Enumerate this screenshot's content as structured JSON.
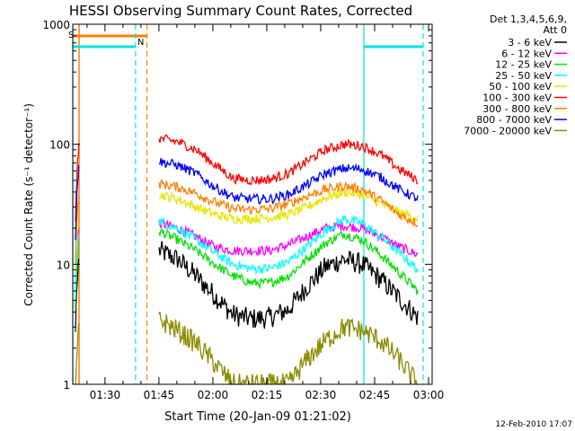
{
  "chart_data": {
    "type": "line",
    "title": "HESSI Observing Summary Count Rates, Corrected",
    "xlabel": "Start Time (20-Jan-09 01:21:02)",
    "ylabel": "Corrected Count Rate (s⁻¹ detector⁻¹)",
    "yscale": "log",
    "xlim": [
      "01:21:02",
      "03:01:00"
    ],
    "ylim": [
      1,
      1000
    ],
    "x_ticks": [
      "01:30",
      "01:45",
      "02:00",
      "02:15",
      "02:30",
      "02:45",
      "03:00"
    ],
    "y_ticks": [
      "1",
      "10",
      "100",
      "1000"
    ],
    "grid": false,
    "legend_position": "right",
    "legend_header": [
      "Det 1,3,4,5,6,9,",
      "Att 0"
    ],
    "timestamp": "12-Feb-2010 17:07",
    "annotations": [
      {
        "text": "S",
        "color": "#ff8000"
      },
      {
        "text": "N",
        "color": "#00e5e5"
      }
    ],
    "segments": [
      {
        "name": "SAA",
        "color": "#ff8000",
        "start": "01:21:02",
        "end": "01:41:40",
        "level": 800
      },
      {
        "name": "Night",
        "color": "#00e5e5",
        "start": "01:21:02",
        "end": "01:38:30",
        "level": 650
      },
      {
        "name": "Night",
        "color": "#00e5e5",
        "start": "02:42:00",
        "end": "02:58:30",
        "level": 650
      }
    ],
    "series": [
      {
        "name": "3 - 6 keV",
        "color": "#000000",
        "values": [
          13,
          11,
          8,
          5.5,
          3.8,
          3.5,
          3.6,
          4.2,
          6.5,
          9.5,
          11,
          10,
          7.5,
          5.2,
          3.6
        ]
      },
      {
        "name": "6 - 12 keV",
        "color": "#ff00ff",
        "values": [
          22,
          20,
          17,
          14,
          13,
          13,
          13,
          14.5,
          17,
          20,
          21,
          20,
          17,
          14,
          12
        ]
      },
      {
        "name": "12 - 25 keV",
        "color": "#00e000",
        "values": [
          19,
          16,
          13,
          10,
          8,
          7,
          7,
          8,
          11,
          15,
          18,
          16,
          12,
          8.5,
          6
        ]
      },
      {
        "name": "25 - 50 keV",
        "color": "#00ffff",
        "values": [
          23,
          20,
          16,
          12.5,
          10,
          9.2,
          9.2,
          10.5,
          14,
          19,
          24,
          22,
          17,
          12.5,
          9
        ]
      },
      {
        "name": "50 - 100 keV",
        "color": "#e6e600",
        "values": [
          38,
          35,
          30,
          26,
          24,
          24,
          24.5,
          26,
          30,
          36,
          40,
          38,
          32,
          27,
          24
        ]
      },
      {
        "name": "100 - 300 keV",
        "color": "#ff0000",
        "values": [
          112,
          105,
          90,
          68,
          52,
          50,
          51,
          57,
          72,
          90,
          100,
          97,
          82,
          62,
          50
        ]
      },
      {
        "name": "300 - 800 keV",
        "color": "#ff8000",
        "values": [
          47,
          44,
          39,
          33,
          29,
          28.5,
          29,
          32,
          37,
          42,
          45,
          42,
          34,
          26,
          22
        ]
      },
      {
        "name": "800 - 7000 keV",
        "color": "#0000ff",
        "values": [
          72,
          67,
          57,
          44,
          36,
          35,
          35,
          38,
          46,
          57,
          63,
          62,
          53,
          42,
          35
        ]
      },
      {
        "name": "7000 - 20000 keV",
        "color": "#8b8b00",
        "values": [
          3.5,
          2.8,
          2.2,
          1.5,
          1,
          1,
          1,
          1,
          1.6,
          2.3,
          3,
          2.8,
          2.3,
          1.6,
          1
        ]
      }
    ]
  }
}
